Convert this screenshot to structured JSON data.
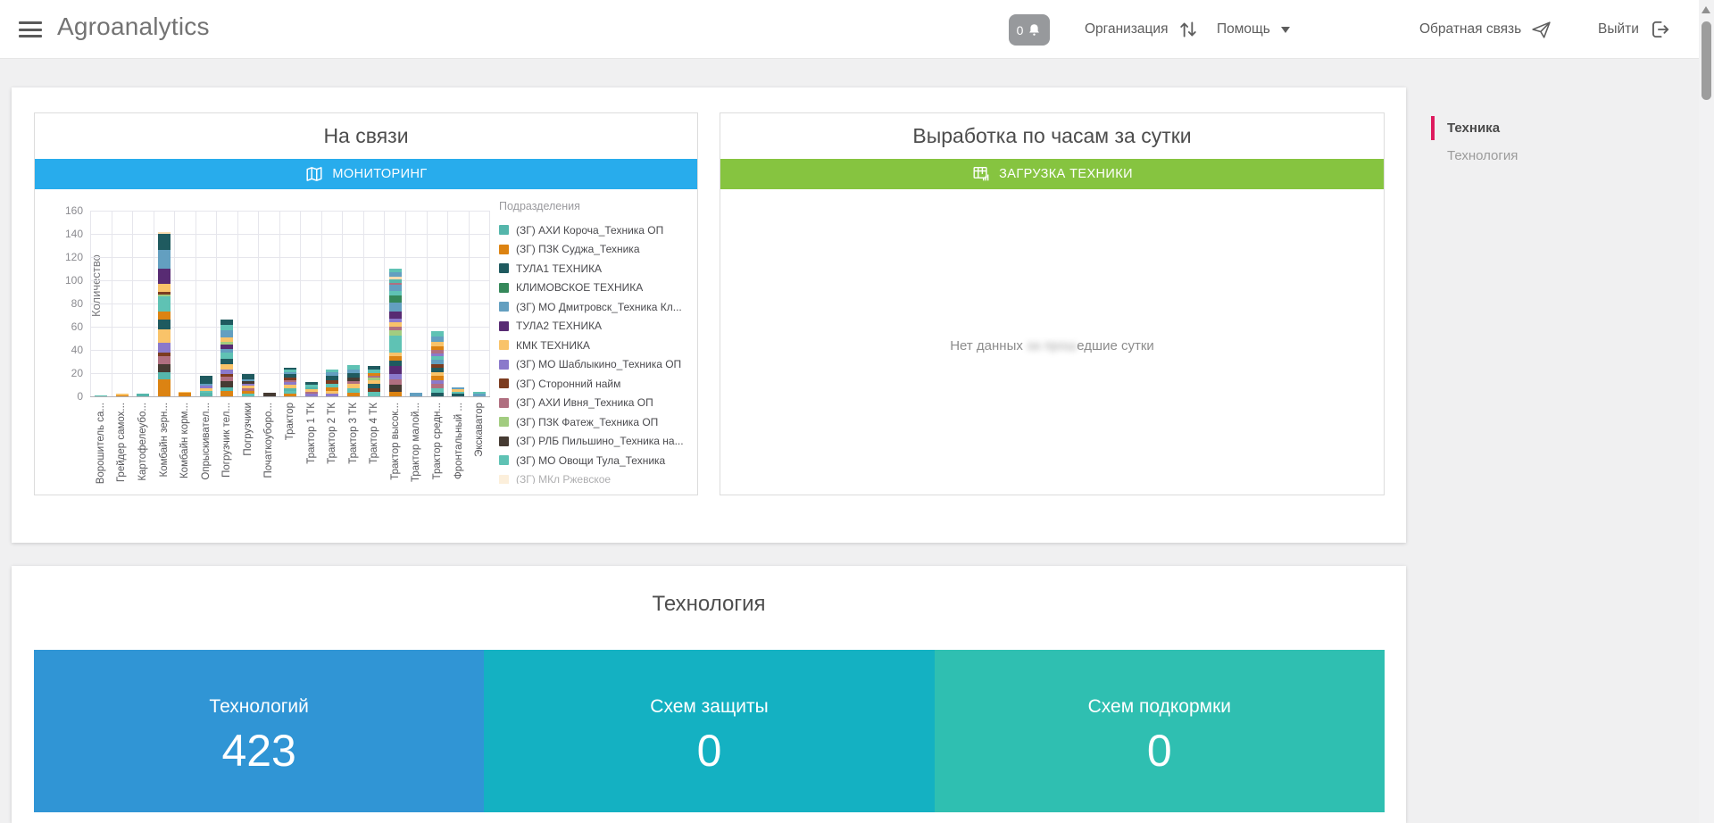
{
  "header": {
    "app_title": "Agroanalytics",
    "notifications": {
      "count": "0"
    },
    "nav": {
      "organization": "Организация",
      "help": "Помощь",
      "feedback": "Обратная связь",
      "logout": "Выйти"
    }
  },
  "sidebar": {
    "accent_color": "#DE1B5E",
    "items": [
      {
        "label": "Техника",
        "active": true
      },
      {
        "label": "Технология",
        "active": false
      }
    ]
  },
  "cards": {
    "on_line": {
      "title": "На связи",
      "button_label": "МОНИТОРИНГ",
      "button_color": "#28ACEC"
    },
    "output": {
      "title": "Выработка по часам за сутки",
      "button_label": "ЗАГРУЗКА ТЕХНИКИ",
      "button_color": "#86C440",
      "empty_text_parts": {
        "before": "Нет данных ",
        "blurred": "за прош",
        "after": "едшие сутки"
      }
    },
    "technology": {
      "title": "Технология",
      "tiles": [
        {
          "label": "Технологий",
          "value": "423",
          "color": "#3095D5"
        },
        {
          "label": "Схем защиты",
          "value": "0",
          "color": "#14B1C2"
        },
        {
          "label": "Схем подкормки",
          "value": "0",
          "color": "#2FBFB1"
        }
      ]
    }
  },
  "chart_data": {
    "type": "bar",
    "stacked": true,
    "ylabel": "Количество",
    "ylim": [
      0,
      160
    ],
    "yticks": [
      0,
      20,
      40,
      60,
      80,
      100,
      120,
      140,
      160
    ],
    "grid": true,
    "legend_position": "right",
    "legend_title": "Подразделения",
    "categories": [
      "Ворошитель са...",
      "Грейдер самох...",
      "Картофелеубо...",
      "Комбайн зерн...",
      "Комбайн корм...",
      "Опрыскивател...",
      "Погрузчик тел...",
      "Погрузчики",
      "Початкоуборо...",
      "Трактор",
      "Трактор 1 ТК",
      "Трактор 2 ТК",
      "Трактор 3 ТК",
      "Трактор 4 ТК",
      "Трактор высок...",
      "Трактор малой...",
      "Трактор средн...",
      "Фронтальный ...",
      "Экскаватор"
    ],
    "series": [
      {
        "name": "(ЗГ) АХИ Короча_Техника ОП",
        "color": "#55B6AB"
      },
      {
        "name": "(ЗГ) ПЗК Суджа_Техника",
        "color": "#DC8312"
      },
      {
        "name": "ТУЛА1 ТЕХНИКА",
        "color": "#1F5A5F"
      },
      {
        "name": "КЛИМОВСКОЕ ТЕХНИКА",
        "color": "#35885A"
      },
      {
        "name": "(ЗГ) МО Дмитровск_Техника Кл...",
        "color": "#639FC0"
      },
      {
        "name": "ТУЛА2 ТЕХНИКА",
        "color": "#582B73"
      },
      {
        "name": "КМК ТЕХНИКА",
        "color": "#F9C369"
      },
      {
        "name": "(ЗГ) МО Шаблыкино_Техника ОП",
        "color": "#8B79CB"
      },
      {
        "name": "(ЗГ) Сторонний найм",
        "color": "#7C3C20"
      },
      {
        "name": "(ЗГ) АХИ Ивня_Техника ОП",
        "color": "#B06F80"
      },
      {
        "name": "(ЗГ) ПЗК Фатеж_Техника ОП",
        "color": "#A2CC80"
      },
      {
        "name": "(ЗГ) РЛБ Пильшино_Техника на...",
        "color": "#463B33"
      },
      {
        "name": "(ЗГ) МО Овощи Тула_Техника",
        "color": "#5FC2B4"
      },
      {
        "name": "(ЗГ) МКл Ржевское",
        "color": "#F9DCB0",
        "clipped": true
      }
    ],
    "totals": [
      1,
      2,
      2,
      142,
      4,
      18,
      66,
      19,
      3,
      25,
      12,
      23,
      27,
      26,
      110,
      3,
      56,
      8,
      4
    ],
    "bars": [
      {
        "segments": [
          [
            12,
            1
          ]
        ]
      },
      {
        "segments": [
          [
            1,
            1
          ],
          [
            6,
            1
          ]
        ]
      },
      {
        "segments": [
          [
            0,
            2
          ]
        ]
      },
      {
        "segments": [
          [
            1,
            15
          ],
          [
            0,
            6
          ],
          [
            11,
            7
          ],
          [
            9,
            7
          ],
          [
            8,
            3
          ],
          [
            7,
            8
          ],
          [
            6,
            12
          ],
          [
            2,
            8
          ],
          [
            1,
            7
          ],
          [
            12,
            13
          ],
          [
            10,
            2
          ],
          [
            8,
            2
          ],
          [
            6,
            7
          ],
          [
            5,
            13
          ],
          [
            4,
            16
          ],
          [
            2,
            14
          ],
          [
            13,
            2
          ]
        ]
      },
      {
        "segments": [
          [
            1,
            3
          ],
          [
            6,
            1
          ]
        ]
      },
      {
        "segments": [
          [
            0,
            3
          ],
          [
            12,
            2
          ],
          [
            6,
            2
          ],
          [
            7,
            2
          ],
          [
            4,
            2
          ],
          [
            2,
            7
          ]
        ]
      },
      {
        "segments": [
          [
            1,
            5
          ],
          [
            0,
            3
          ],
          [
            11,
            5
          ],
          [
            9,
            4
          ],
          [
            8,
            2
          ],
          [
            7,
            4
          ],
          [
            6,
            5
          ],
          [
            2,
            4
          ],
          [
            12,
            6
          ],
          [
            4,
            3
          ],
          [
            5,
            4
          ],
          [
            10,
            2
          ],
          [
            6,
            4
          ],
          [
            4,
            6
          ],
          [
            12,
            5
          ],
          [
            2,
            4
          ]
        ]
      },
      {
        "segments": [
          [
            12,
            2
          ],
          [
            1,
            3
          ],
          [
            9,
            2
          ],
          [
            6,
            2
          ],
          [
            7,
            2
          ],
          [
            11,
            2
          ],
          [
            4,
            2
          ],
          [
            2,
            4
          ]
        ]
      },
      {
        "segments": [
          [
            11,
            3
          ]
        ]
      },
      {
        "segments": [
          [
            1,
            2
          ],
          [
            12,
            3
          ],
          [
            0,
            2
          ],
          [
            6,
            3
          ],
          [
            7,
            2
          ],
          [
            9,
            2
          ],
          [
            8,
            2
          ],
          [
            2,
            3
          ],
          [
            4,
            2
          ],
          [
            12,
            2
          ],
          [
            2,
            2
          ]
        ]
      },
      {
        "segments": [
          [
            7,
            2
          ],
          [
            9,
            2
          ],
          [
            6,
            2
          ],
          [
            0,
            2
          ],
          [
            12,
            2
          ],
          [
            2,
            2
          ]
        ]
      },
      {
        "segments": [
          [
            7,
            2
          ],
          [
            6,
            3
          ],
          [
            1,
            3
          ],
          [
            12,
            3
          ],
          [
            8,
            3
          ],
          [
            2,
            4
          ],
          [
            4,
            3
          ],
          [
            12,
            2
          ]
        ]
      },
      {
        "segments": [
          [
            1,
            3
          ],
          [
            12,
            4
          ],
          [
            6,
            4
          ],
          [
            9,
            2
          ],
          [
            11,
            3
          ],
          [
            2,
            4
          ],
          [
            4,
            3
          ],
          [
            12,
            4
          ]
        ]
      },
      {
        "segments": [
          [
            12,
            4
          ],
          [
            8,
            3
          ],
          [
            2,
            4
          ],
          [
            6,
            3
          ],
          [
            10,
            2
          ],
          [
            9,
            2
          ],
          [
            1,
            2
          ],
          [
            12,
            3
          ],
          [
            2,
            3
          ]
        ]
      },
      {
        "segments": [
          [
            1,
            4
          ],
          [
            11,
            6
          ],
          [
            9,
            5
          ],
          [
            7,
            4
          ],
          [
            5,
            7
          ],
          [
            2,
            5
          ],
          [
            1,
            4
          ],
          [
            6,
            3
          ],
          [
            12,
            14
          ],
          [
            10,
            5
          ],
          [
            9,
            3
          ],
          [
            6,
            4
          ],
          [
            7,
            3
          ],
          [
            5,
            6
          ],
          [
            4,
            8
          ],
          [
            3,
            6
          ],
          [
            12,
            4
          ],
          [
            4,
            5
          ],
          [
            9,
            2
          ],
          [
            0,
            3
          ],
          [
            13,
            2
          ],
          [
            4,
            4
          ],
          [
            12,
            3
          ]
        ]
      },
      {
        "segments": [
          [
            4,
            3
          ]
        ]
      },
      {
        "segments": [
          [
            2,
            3
          ],
          [
            12,
            4
          ],
          [
            9,
            4
          ],
          [
            7,
            3
          ],
          [
            1,
            4
          ],
          [
            6,
            3
          ],
          [
            2,
            4
          ],
          [
            8,
            3
          ],
          [
            4,
            4
          ],
          [
            12,
            3
          ],
          [
            7,
            2
          ],
          [
            9,
            3
          ],
          [
            1,
            3
          ],
          [
            6,
            4
          ],
          [
            4,
            5
          ],
          [
            12,
            4
          ]
        ]
      },
      {
        "segments": [
          [
            2,
            2
          ],
          [
            12,
            2
          ],
          [
            6,
            2
          ],
          [
            4,
            2
          ]
        ]
      },
      {
        "segments": [
          [
            4,
            2
          ],
          [
            12,
            2
          ]
        ]
      }
    ]
  }
}
